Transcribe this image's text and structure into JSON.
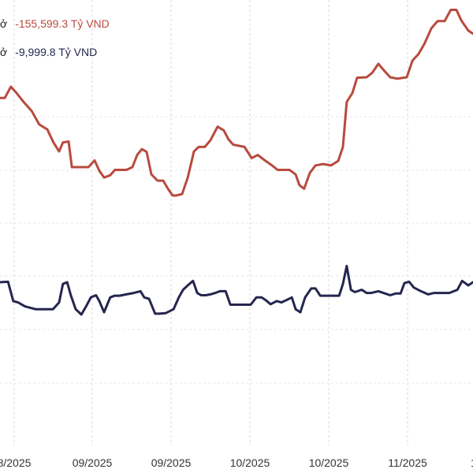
{
  "legend": [
    {
      "label_partial": "ở",
      "value": "-155,599.3 Tỷ VND",
      "color": "#b84a3e"
    },
    {
      "label_partial": "ở",
      "value": "-9,999.8 Tỷ VND",
      "color": "#25264f"
    }
  ],
  "chart_data": {
    "type": "line",
    "grid": {
      "vertical": true,
      "horizontal": true,
      "style": "dashed"
    },
    "x_tick_labels": [
      "8/2025",
      "09/2025",
      "09/2025",
      "10/2025",
      "10/2025",
      "11/2025",
      "1"
    ],
    "x_range": [
      0,
      100
    ],
    "y_range": [
      0,
      100
    ],
    "series": [
      {
        "color": "#b84a3e",
        "points": [
          [
            0,
            78.2
          ],
          [
            1,
            78.2
          ],
          [
            2.3,
            80.7
          ],
          [
            3.5,
            79.3
          ],
          [
            5,
            77.3
          ],
          [
            6.7,
            75.3
          ],
          [
            8.3,
            72.3
          ],
          [
            10,
            71.2
          ],
          [
            11.3,
            68.3
          ],
          [
            12.5,
            66.3
          ],
          [
            13.3,
            68.3
          ],
          [
            14.5,
            68.5
          ],
          [
            15.2,
            62.8
          ],
          [
            16.7,
            62.8
          ],
          [
            18.7,
            62.8
          ],
          [
            20,
            64.3
          ],
          [
            21,
            62
          ],
          [
            22,
            60.5
          ],
          [
            23.3,
            61
          ],
          [
            24.3,
            62.2
          ],
          [
            26.7,
            62.2
          ],
          [
            28,
            62.8
          ],
          [
            29,
            65.5
          ],
          [
            30,
            66.8
          ],
          [
            31,
            66.2
          ],
          [
            32,
            61.2
          ],
          [
            33.3,
            59.8
          ],
          [
            34.5,
            59.8
          ],
          [
            35.5,
            58
          ],
          [
            36.5,
            56.5
          ],
          [
            37.2,
            56.5
          ],
          [
            38.5,
            56.8
          ],
          [
            39.7,
            60.5
          ],
          [
            41,
            66.3
          ],
          [
            42,
            67.3
          ],
          [
            43.3,
            67.3
          ],
          [
            44.5,
            68.8
          ],
          [
            46,
            71.8
          ],
          [
            47.3,
            71
          ],
          [
            48.3,
            69
          ],
          [
            49.3,
            67.8
          ],
          [
            51.7,
            67.3
          ],
          [
            53.2,
            64.8
          ],
          [
            54.5,
            65.5
          ],
          [
            56,
            64.3
          ],
          [
            57.5,
            63.2
          ],
          [
            58.7,
            62.2
          ],
          [
            61.2,
            62.2
          ],
          [
            62.5,
            61.2
          ],
          [
            63.3,
            58.8
          ],
          [
            64.3,
            58
          ],
          [
            65.5,
            61.5
          ],
          [
            66.7,
            63.2
          ],
          [
            68.3,
            63.5
          ],
          [
            70,
            63.2
          ],
          [
            71.5,
            64.2
          ],
          [
            72.5,
            67.3
          ],
          [
            73.3,
            77.3
          ],
          [
            74.5,
            79.3
          ],
          [
            75.5,
            82.7
          ],
          [
            77.5,
            82.8
          ],
          [
            78.7,
            83.8
          ],
          [
            80,
            85.8
          ],
          [
            81.2,
            84.3
          ],
          [
            82.5,
            82.8
          ],
          [
            84,
            82.5
          ],
          [
            86,
            82.8
          ],
          [
            87.2,
            86.5
          ],
          [
            88.5,
            88
          ],
          [
            89.7,
            90.2
          ],
          [
            91.2,
            93.7
          ],
          [
            92.5,
            95.3
          ],
          [
            94,
            95.3
          ],
          [
            95.3,
            97.8
          ],
          [
            96.5,
            97.8
          ],
          [
            97.5,
            95.5
          ],
          [
            99,
            93.2
          ],
          [
            100,
            92.5
          ]
        ]
      },
      {
        "color": "#25264f",
        "points": [
          [
            0,
            37.2
          ],
          [
            1.7,
            37.3
          ],
          [
            2.8,
            33
          ],
          [
            3.8,
            32.7
          ],
          [
            5.3,
            31.8
          ],
          [
            7.5,
            31.2
          ],
          [
            9.8,
            31.2
          ],
          [
            11.2,
            31.2
          ],
          [
            12.5,
            32.7
          ],
          [
            13.3,
            36.8
          ],
          [
            14.2,
            37.2
          ],
          [
            15,
            34.2
          ],
          [
            16,
            31.2
          ],
          [
            17.2,
            30
          ],
          [
            18.3,
            32
          ],
          [
            19.2,
            33.8
          ],
          [
            20.3,
            34.3
          ],
          [
            21,
            33
          ],
          [
            22,
            30.5
          ],
          [
            23.3,
            33.8
          ],
          [
            24.2,
            34.2
          ],
          [
            25.3,
            34.2
          ],
          [
            26.7,
            34.5
          ],
          [
            28.3,
            34.8
          ],
          [
            29.7,
            35.2
          ],
          [
            30.5,
            33.8
          ],
          [
            31.5,
            33.5
          ],
          [
            32.8,
            30.2
          ],
          [
            33.7,
            30.2
          ],
          [
            35,
            30.3
          ],
          [
            36.7,
            31.2
          ],
          [
            37.8,
            33.8
          ],
          [
            38.7,
            35.5
          ],
          [
            39.7,
            36.5
          ],
          [
            40.8,
            37.5
          ],
          [
            41.7,
            34.8
          ],
          [
            42.5,
            34.3
          ],
          [
            43.5,
            34.3
          ],
          [
            44.5,
            34.5
          ],
          [
            45.5,
            34.8
          ],
          [
            46.5,
            35.2
          ],
          [
            47.7,
            35.2
          ],
          [
            48.7,
            32.2
          ],
          [
            50,
            32.2
          ],
          [
            51.5,
            32.2
          ],
          [
            53,
            32.2
          ],
          [
            54.2,
            33.8
          ],
          [
            55.3,
            33.8
          ],
          [
            56.2,
            33.2
          ],
          [
            57.2,
            32.3
          ],
          [
            58.5,
            33
          ],
          [
            59.5,
            32.7
          ],
          [
            60.5,
            33.2
          ],
          [
            61.7,
            33.8
          ],
          [
            62.5,
            31.2
          ],
          [
            63.5,
            30.5
          ],
          [
            64.5,
            33.8
          ],
          [
            65.8,
            35.8
          ],
          [
            66.7,
            35.8
          ],
          [
            67.7,
            34.2
          ],
          [
            69,
            34.2
          ],
          [
            70.7,
            34.2
          ],
          [
            71.7,
            34.2
          ],
          [
            72.5,
            36.8
          ],
          [
            73.3,
            40.8
          ],
          [
            74.2,
            35.5
          ],
          [
            75,
            35
          ],
          [
            76.5,
            35.5
          ],
          [
            77.5,
            34.8
          ],
          [
            78.5,
            34.8
          ],
          [
            80,
            35.2
          ],
          [
            82.5,
            34.3
          ],
          [
            83.7,
            34.7
          ],
          [
            84.7,
            34.7
          ],
          [
            85.5,
            37
          ],
          [
            86.5,
            37.3
          ],
          [
            87.5,
            36
          ],
          [
            89,
            35.2
          ],
          [
            90.5,
            34.5
          ],
          [
            91.8,
            34.8
          ],
          [
            93.3,
            34.8
          ],
          [
            95,
            34.8
          ],
          [
            96.7,
            35.5
          ],
          [
            97.7,
            37.5
          ],
          [
            99,
            36.5
          ],
          [
            100,
            37.2
          ]
        ]
      }
    ]
  }
}
